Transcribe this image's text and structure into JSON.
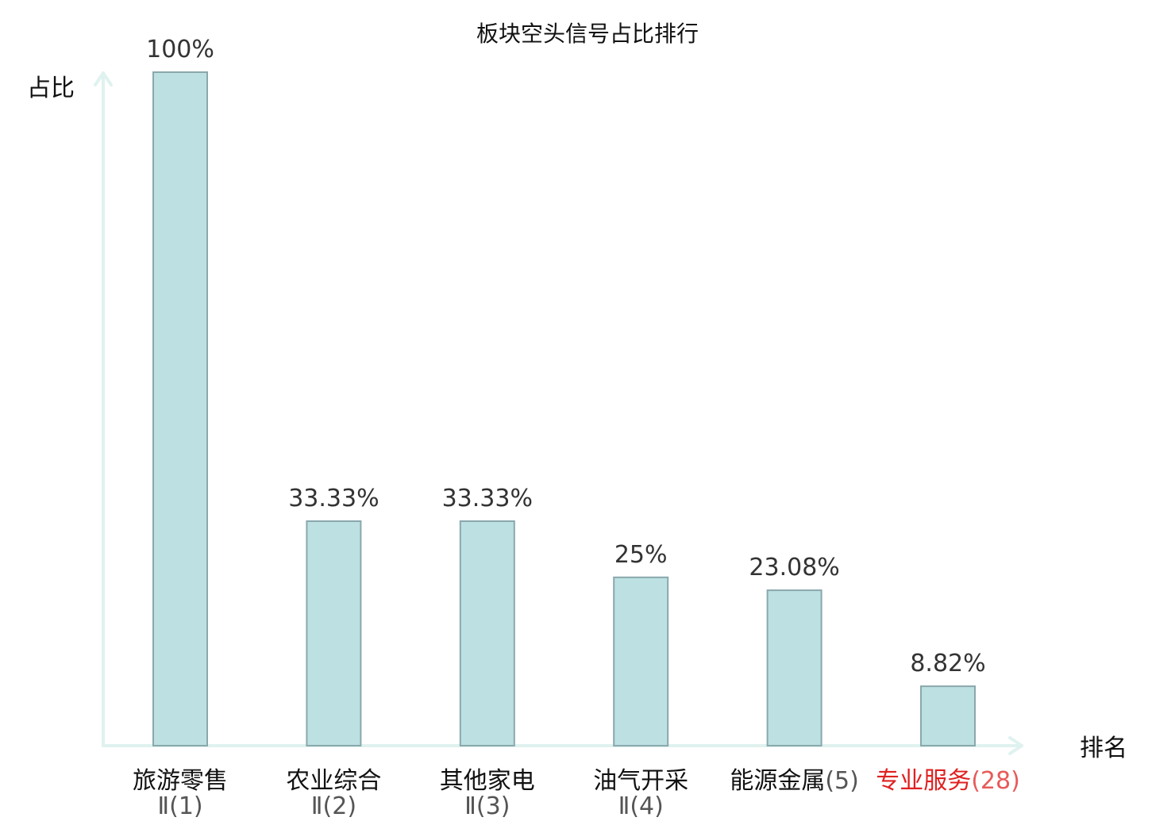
{
  "chart_data": {
    "type": "bar",
    "title": "板块空头信号占比排行",
    "ylabel": "占比",
    "xlabel": "排名",
    "ylim": [
      0,
      100
    ],
    "grid": false,
    "categories": [
      {
        "name": "旅游零售",
        "rank_text": "Ⅱ(1)",
        "highlight": false
      },
      {
        "name": "农业综合",
        "rank_text": "Ⅱ(2)",
        "highlight": false
      },
      {
        "name": "其他家电",
        "rank_text": "Ⅱ(3)",
        "highlight": false
      },
      {
        "name": "油气开采",
        "rank_text": "Ⅱ(4)",
        "highlight": false
      },
      {
        "name": "能源金属",
        "rank_text": "(5)",
        "highlight": false
      },
      {
        "name": "专业服务",
        "rank_text": "(28)",
        "highlight": true
      }
    ],
    "values": [
      100,
      33.33,
      33.33,
      25,
      23.08,
      8.82
    ],
    "value_labels": [
      "100%",
      "33.33%",
      "33.33%",
      "25%",
      "23.08%",
      "8.82%"
    ]
  },
  "colors": {
    "bar_fill": "#bde0e3",
    "bar_stroke": "#8aa8ac",
    "axis": "#dff2ef",
    "highlight_text": "#e02020",
    "highlight_rank": "#e85a5a",
    "text": "#111111",
    "value_text": "#333333"
  }
}
